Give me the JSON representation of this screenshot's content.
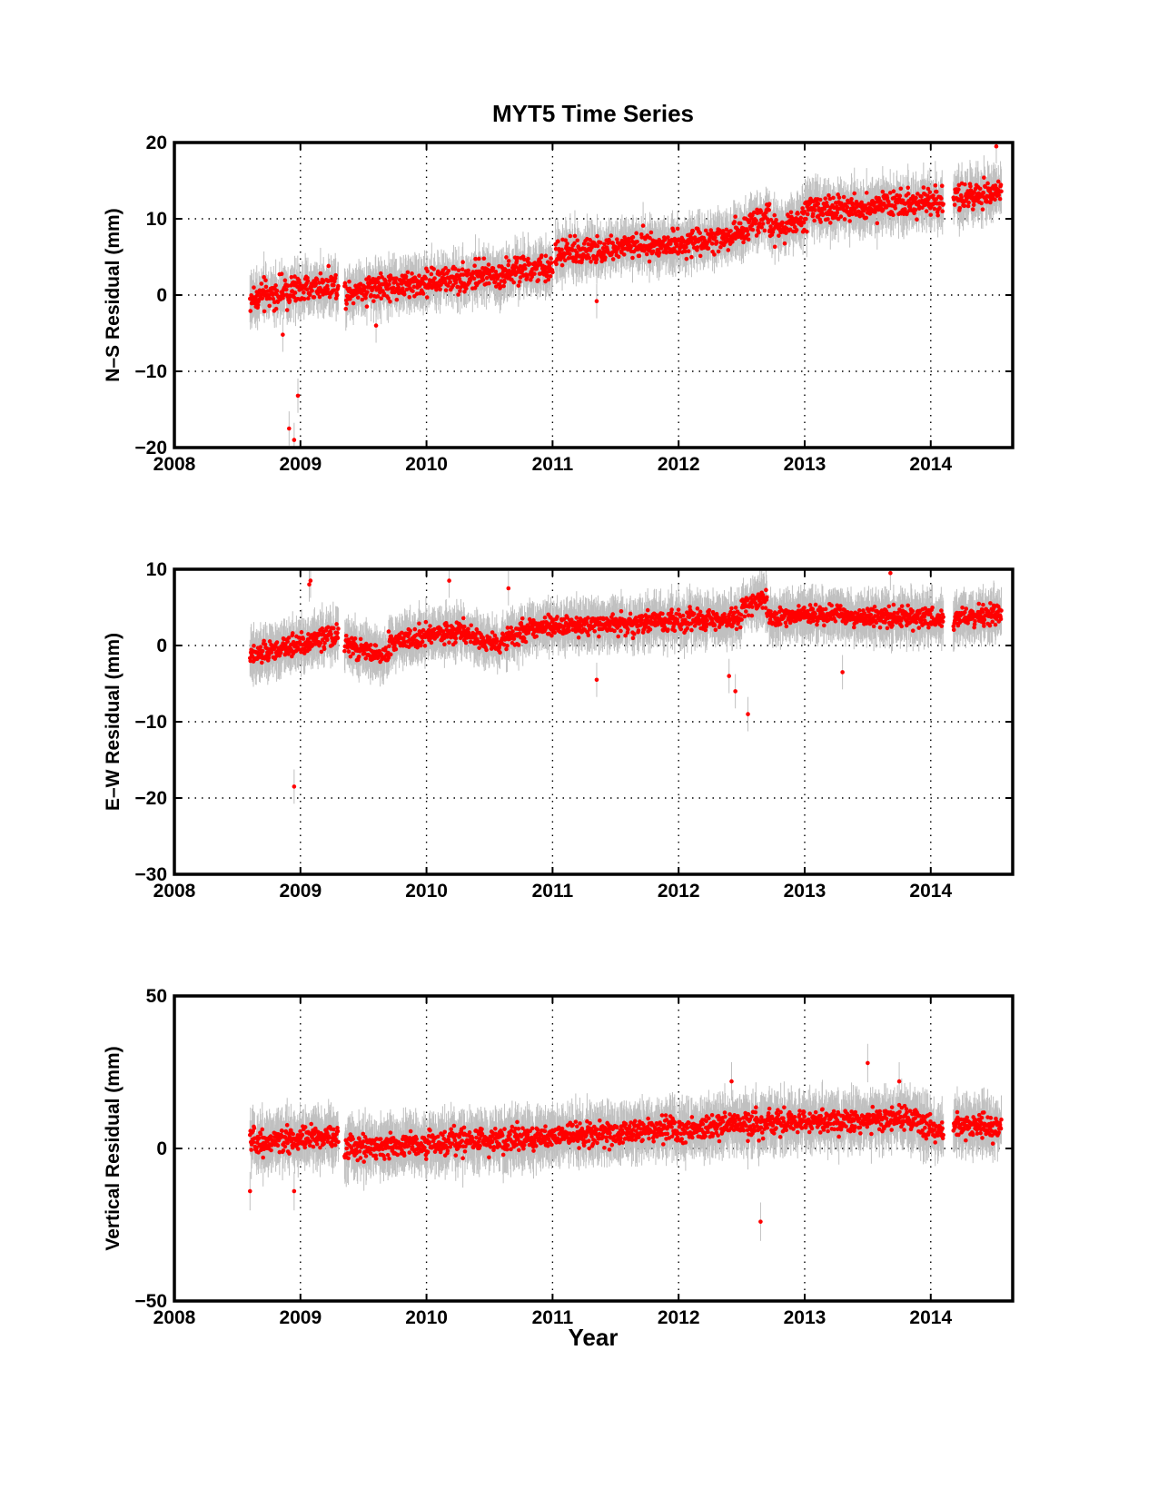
{
  "figure": {
    "title": "MYT5 Time Series",
    "xlabel": "Year"
  },
  "colors": {
    "points": "#ff0000",
    "errorbars": "#c0c0c0",
    "axes": "#000000",
    "grid": "#000000"
  },
  "chart_data": [
    {
      "type": "scatter",
      "name": "ns",
      "ylabel": "N–S Residual (mm)",
      "xlim": [
        2008,
        2014.65
      ],
      "ylim": [
        -20,
        20
      ],
      "xticks": [
        2008,
        2009,
        2010,
        2011,
        2012,
        2013,
        2014
      ],
      "yticks": [
        -20,
        -10,
        0,
        10,
        20
      ],
      "grid": true,
      "error_bars": true,
      "trend_segments": [
        {
          "x": [
            2008.6,
            2009.3
          ],
          "y": [
            -0.5,
            1.5
          ]
        },
        {
          "x": [
            2009.35,
            2011.0
          ],
          "y": [
            0.5,
            3.5
          ]
        },
        {
          "x": [
            2011.02,
            2012.45
          ],
          "y": [
            5.5,
            7.5
          ]
        },
        {
          "x": [
            2012.45,
            2012.72
          ],
          "y": [
            8.0,
            11.0
          ]
        },
        {
          "x": [
            2012.72,
            2013.0
          ],
          "y": [
            8.5,
            10.0
          ]
        },
        {
          "x": [
            2013.0,
            2014.1
          ],
          "y": [
            11.0,
            12.5
          ]
        },
        {
          "x": [
            2014.18,
            2014.56
          ],
          "y": [
            12.5,
            13.5
          ]
        }
      ],
      "typical_spread": 1.8,
      "typical_error": 2.5,
      "outliers": [
        {
          "x": 2008.91,
          "y": -17.5
        },
        {
          "x": 2008.95,
          "y": -19.0
        },
        {
          "x": 2008.98,
          "y": -13.2
        },
        {
          "x": 2008.86,
          "y": -5.2
        },
        {
          "x": 2009.6,
          "y": -4.0
        },
        {
          "x": 2011.35,
          "y": -0.8
        },
        {
          "x": 2014.52,
          "y": 19.5
        }
      ]
    },
    {
      "type": "scatter",
      "name": "ew",
      "ylabel": "E–W Residual (mm)",
      "xlim": [
        2008,
        2014.65
      ],
      "ylim": [
        -30,
        10
      ],
      "xticks": [
        2008,
        2009,
        2010,
        2011,
        2012,
        2013,
        2014
      ],
      "yticks": [
        -30,
        -20,
        -10,
        0,
        10
      ],
      "grid": true,
      "error_bars": true,
      "trend_segments": [
        {
          "x": [
            2008.6,
            2009.3
          ],
          "y": [
            -1.5,
            1.5
          ]
        },
        {
          "x": [
            2009.35,
            2009.7
          ],
          "y": [
            0.0,
            -1.5
          ]
        },
        {
          "x": [
            2009.7,
            2010.3
          ],
          "y": [
            0.5,
            2.0
          ]
        },
        {
          "x": [
            2010.3,
            2010.6
          ],
          "y": [
            1.5,
            0.0
          ]
        },
        {
          "x": [
            2010.6,
            2011.0
          ],
          "y": [
            1.0,
            3.0
          ]
        },
        {
          "x": [
            2011.0,
            2012.5
          ],
          "y": [
            2.5,
            3.5
          ]
        },
        {
          "x": [
            2012.5,
            2012.7
          ],
          "y": [
            5.0,
            6.0
          ]
        },
        {
          "x": [
            2012.7,
            2013.0
          ],
          "y": [
            3.5,
            4.0
          ]
        },
        {
          "x": [
            2013.0,
            2014.1
          ],
          "y": [
            4.0,
            3.5
          ]
        },
        {
          "x": [
            2014.18,
            2014.56
          ],
          "y": [
            3.5,
            4.0
          ]
        }
      ],
      "typical_spread": 1.3,
      "typical_error": 2.5,
      "outliers": [
        {
          "x": 2008.95,
          "y": -18.5
        },
        {
          "x": 2009.07,
          "y": 8.0
        },
        {
          "x": 2009.08,
          "y": 8.5
        },
        {
          "x": 2010.18,
          "y": 8.5
        },
        {
          "x": 2011.35,
          "y": -4.5
        },
        {
          "x": 2012.4,
          "y": -4.0
        },
        {
          "x": 2012.45,
          "y": -6.0
        },
        {
          "x": 2012.55,
          "y": -9.0
        },
        {
          "x": 2013.3,
          "y": -3.5
        },
        {
          "x": 2013.68,
          "y": 9.5
        },
        {
          "x": 2010.65,
          "y": 7.5
        }
      ]
    },
    {
      "type": "scatter",
      "name": "up",
      "ylabel": "Vertical Residual (mm)",
      "xlim": [
        2008,
        2014.65
      ],
      "ylim": [
        -50,
        50
      ],
      "xticks": [
        2008,
        2009,
        2010,
        2011,
        2012,
        2013,
        2014
      ],
      "yticks": [
        -50,
        0,
        50
      ],
      "grid": true,
      "error_bars": true,
      "trend_segments": [
        {
          "x": [
            2008.6,
            2009.3
          ],
          "y": [
            2.0,
            4.0
          ]
        },
        {
          "x": [
            2009.35,
            2011.0
          ],
          "y": [
            0.0,
            4.0
          ]
        },
        {
          "x": [
            2011.0,
            2012.7
          ],
          "y": [
            4.0,
            8.0
          ]
        },
        {
          "x": [
            2012.7,
            2013.9
          ],
          "y": [
            8.0,
            10.0
          ]
        },
        {
          "x": [
            2013.9,
            2014.1
          ],
          "y": [
            8.0,
            5.0
          ]
        },
        {
          "x": [
            2014.18,
            2014.56
          ],
          "y": [
            7.0,
            7.0
          ]
        }
      ],
      "typical_spread": 4.0,
      "typical_error": 7.0,
      "outliers": [
        {
          "x": 2008.6,
          "y": -14.0
        },
        {
          "x": 2008.95,
          "y": -14.0
        },
        {
          "x": 2012.65,
          "y": -24.0
        },
        {
          "x": 2013.5,
          "y": 28.0
        },
        {
          "x": 2013.75,
          "y": 22.0
        },
        {
          "x": 2012.42,
          "y": 22.0
        }
      ]
    }
  ]
}
